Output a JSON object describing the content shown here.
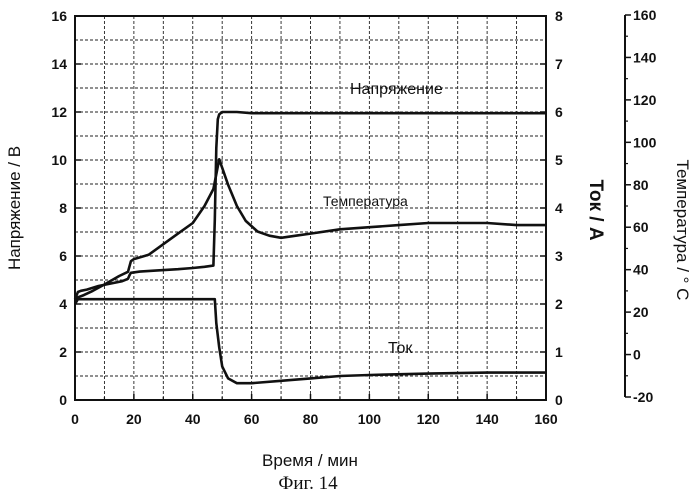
{
  "chart_data": {
    "type": "line",
    "caption": "Фиг. 14",
    "xlabel": "Время / мин",
    "x_ticks": [
      "0",
      "20",
      "40",
      "60",
      "80",
      "100",
      "120",
      "140",
      "160"
    ],
    "xlim": [
      0,
      160
    ],
    "y_left": {
      "label": "Напряжение / В",
      "lim": [
        0,
        16
      ],
      "ticks": [
        "0",
        "2",
        "4",
        "6",
        "8",
        "10",
        "12",
        "14",
        "16"
      ]
    },
    "y_right1": {
      "label": "Ток / А",
      "lim": [
        0,
        8
      ],
      "ticks": [
        "0",
        "1",
        "2",
        "3",
        "4",
        "5",
        "6",
        "7",
        "8"
      ]
    },
    "y_right2": {
      "label": "Температура  / ° С",
      "lim": [
        -20,
        160
      ],
      "ticks": [
        "-20",
        "0",
        "20",
        "40",
        "60",
        "80",
        "100",
        "120",
        "140",
        "160"
      ]
    },
    "series": [
      {
        "name": "Напряжение",
        "axis": "left",
        "x": [
          0,
          1,
          2,
          4,
          8,
          12,
          16,
          18,
          18.5,
          19,
          22,
          28,
          35,
          40,
          44,
          47,
          47.5,
          48,
          48.5,
          49,
          50,
          55,
          60,
          80,
          100,
          120,
          140,
          160
        ],
        "y": [
          4.2,
          4.5,
          4.55,
          4.6,
          4.75,
          4.85,
          4.95,
          5.05,
          5.2,
          5.3,
          5.35,
          5.4,
          5.45,
          5.5,
          5.55,
          5.6,
          7.5,
          10.5,
          11.7,
          11.9,
          12.0,
          12.0,
          11.95,
          11.95,
          11.95,
          11.95,
          11.95,
          11.95
        ]
      },
      {
        "name": "Температура",
        "axis": "right2",
        "x": [
          0,
          1,
          3,
          6,
          10,
          15,
          18,
          19,
          20,
          25,
          30,
          35,
          40,
          44,
          47,
          48,
          49,
          50,
          52,
          55,
          58,
          62,
          66,
          70,
          75,
          80,
          90,
          100,
          110,
          120,
          130,
          140,
          150,
          160
        ],
        "y": [
          25,
          27,
          28,
          30,
          33,
          37,
          39,
          44,
          45,
          47,
          52,
          57,
          62,
          70,
          78,
          85,
          92,
          88,
          80,
          70,
          63,
          58,
          56,
          55,
          56,
          57,
          59,
          60,
          61,
          62,
          62,
          62,
          61,
          61
        ]
      },
      {
        "name": "Ток",
        "axis": "right1",
        "x": [
          0,
          0.5,
          1,
          5,
          20,
          30,
          40,
          47.5,
          48,
          49,
          50,
          52,
          55,
          60,
          70,
          80,
          90,
          100,
          120,
          140,
          160
        ],
        "y": [
          2.0,
          2.05,
          2.1,
          2.1,
          2.1,
          2.1,
          2.1,
          2.1,
          1.6,
          1.1,
          0.7,
          0.45,
          0.35,
          0.35,
          0.4,
          0.45,
          0.5,
          0.52,
          0.55,
          0.57,
          0.57
        ]
      }
    ],
    "annotations": [
      {
        "text": "Напряжение",
        "series": "Напряжение"
      },
      {
        "text": "Температура",
        "series": "Температура"
      },
      {
        "text": "Ток",
        "series": "Ток"
      }
    ]
  }
}
